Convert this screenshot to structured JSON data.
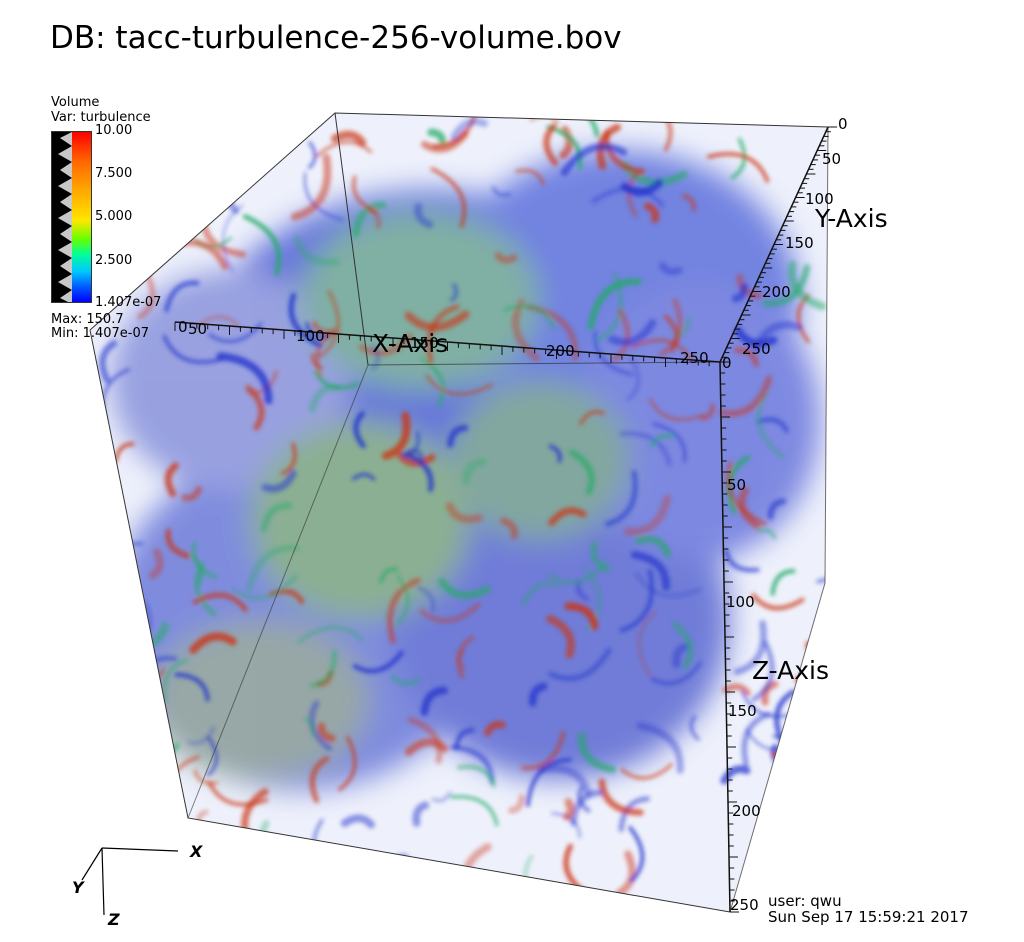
{
  "title": "DB: tacc-turbulence-256-volume.bov",
  "legend": {
    "plot_type": "Volume",
    "variable": "Var: turbulence",
    "ticks": [
      "10.00",
      "7.500",
      "5.000",
      "2.500",
      "1.407e-07"
    ],
    "max": "Max: 150.7",
    "min": "Min: 1.407e-07"
  },
  "axes": {
    "x": {
      "title": "X-Axis",
      "ticks": [
        "0",
        "50",
        "100",
        "150",
        "200",
        "250"
      ]
    },
    "y": {
      "title": "Y-Axis",
      "ticks": [
        "0",
        "50",
        "100",
        "150",
        "200",
        "250"
      ]
    },
    "z": {
      "title": "Z-Axis",
      "ticks": [
        "0",
        "50",
        "100",
        "150",
        "200",
        "250"
      ]
    }
  },
  "triad": {
    "x": "X",
    "y": "Y",
    "z": "Z"
  },
  "footer": {
    "user": "user: qwu",
    "date": "Sun Sep 17 15:59:21 2017"
  },
  "colors": {
    "low": "#2233cc",
    "mid": "#22aa66",
    "high": "#cc3311"
  }
}
